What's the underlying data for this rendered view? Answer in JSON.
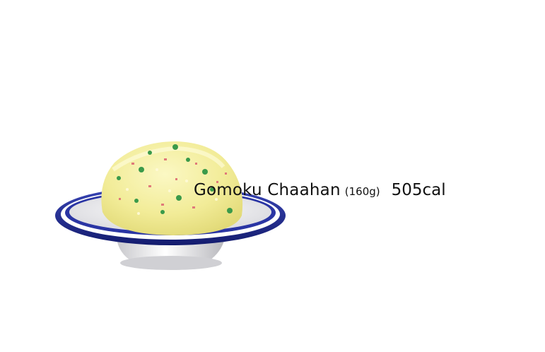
{
  "food": {
    "name": "Gomoku Chaahan",
    "weight": "(160g)",
    "calories": "505cal",
    "icon": "fried-rice-plate-icon",
    "colors": {
      "rice": "#f3ee9a",
      "plate_rim": "#1f2a8f",
      "plate_body": "#e8e8ea",
      "peas": "#3a9a4a",
      "ham": "#e07a7a"
    }
  }
}
